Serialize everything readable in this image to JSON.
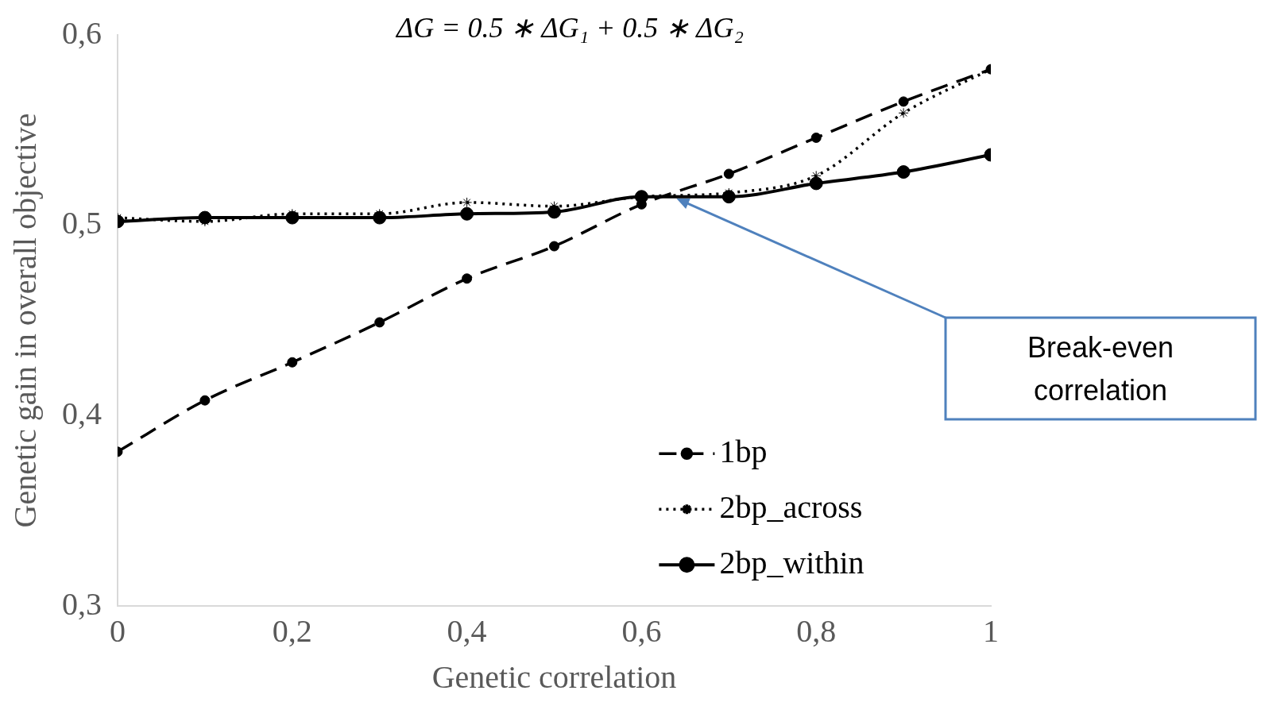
{
  "chart_data": {
    "type": "line",
    "title": "ΔG = 0.5 ∗ ΔG₁ + 0.5 ∗ ΔG₂",
    "xlabel": "Genetic correlation",
    "ylabel": "Genetic gain in overall objective",
    "x": [
      0,
      0.1,
      0.2,
      0.3,
      0.4,
      0.5,
      0.6,
      0.7,
      0.8,
      0.9,
      1
    ],
    "series": [
      {
        "name": "1bp",
        "color": "#000000",
        "line_style": "dashed",
        "marker": "circle",
        "values": [
          0.381,
          0.408,
          0.428,
          0.449,
          0.472,
          0.489,
          0.511,
          0.527,
          0.546,
          0.565,
          0.582
        ]
      },
      {
        "name": "2bp_across",
        "color": "#000000",
        "line_style": "dotted",
        "marker": "cross",
        "values": [
          0.504,
          0.502,
          0.506,
          0.506,
          0.512,
          0.51,
          0.515,
          0.517,
          0.526,
          0.559,
          0.582
        ]
      },
      {
        "name": "2bp_within",
        "color": "#000000",
        "line_style": "solid",
        "marker": "circle",
        "values": [
          0.502,
          0.504,
          0.504,
          0.504,
          0.506,
          0.507,
          0.515,
          0.515,
          0.522,
          0.528,
          0.537
        ]
      }
    ],
    "xlim": [
      0,
      1
    ],
    "xticks": [
      {
        "value": 0,
        "label": "0"
      },
      {
        "value": 0.2,
        "label": "0,2"
      },
      {
        "value": 0.4,
        "label": "0,4"
      },
      {
        "value": 0.6,
        "label": "0,6"
      },
      {
        "value": 0.8,
        "label": "0,8"
      },
      {
        "value": 1,
        "label": "1"
      }
    ],
    "ylim": [
      0.3,
      0.6
    ],
    "yticks": [
      {
        "value": 0.3,
        "label": "0,3"
      },
      {
        "value": 0.4,
        "label": "0,4"
      },
      {
        "value": 0.5,
        "label": "0,5"
      },
      {
        "value": 0.6,
        "label": "0,6"
      }
    ],
    "grid": false,
    "legend": "bottom",
    "annotations": [
      "Break-even correlation"
    ]
  }
}
